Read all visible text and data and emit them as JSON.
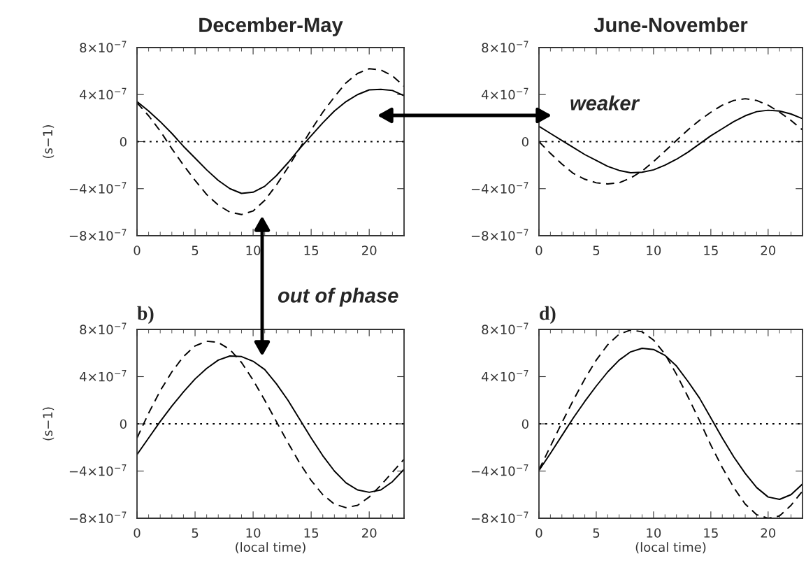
{
  "chart_data": [
    {
      "type": "line",
      "title": "December-May",
      "ylabel": "(s−1)",
      "annotations": [
        "out of phase"
      ],
      "x": [
        0,
        1,
        2,
        3,
        4,
        5,
        6,
        7,
        8,
        9,
        10,
        11,
        12,
        13,
        14,
        15,
        16,
        17,
        18,
        19,
        20,
        21,
        22,
        23
      ],
      "series": [
        {
          "color": "#000000",
          "line_style": "solid",
          "values": [
            3.4e-07,
            2.6e-07,
            1.7e-07,
            7e-08,
            -4e-08,
            -1.4e-07,
            -2.4e-07,
            -3.3e-07,
            -4e-07,
            -4.4e-07,
            -4.3e-07,
            -3.8e-07,
            -2.9e-07,
            -1.8e-07,
            -6e-08,
            5e-08,
            1.6e-07,
            2.6e-07,
            3.4e-07,
            4e-07,
            4.4e-07,
            4.45e-07,
            4.35e-07,
            3.9e-07
          ]
        },
        {
          "color": "#000000",
          "line_style": "dashed",
          "values": [
            3.3e-07,
            2.2e-07,
            9e-08,
            -6e-08,
            -2e-07,
            -3.3e-07,
            -4.5e-07,
            -5.4e-07,
            -6e-07,
            -6.2e-07,
            -5.9e-07,
            -5e-07,
            -3.7e-07,
            -2.2e-07,
            -6e-08,
            1e-07,
            2.5e-07,
            3.8e-07,
            5e-07,
            5.8e-07,
            6.2e-07,
            6.1e-07,
            5.6e-07,
            4.7e-07
          ]
        }
      ],
      "xlim": [
        0,
        23
      ],
      "xticks": [
        0,
        5,
        10,
        15,
        20
      ],
      "ylim": [
        -8e-07,
        8e-07
      ],
      "yticks": [
        {
          "value": 8e-07,
          "label": "8×10$^{−7}$"
        },
        {
          "value": 4e-07,
          "label": "4×10$^{−7}$"
        },
        0,
        {
          "value": -4e-07,
          "label": "−4×10$^{−7}$"
        },
        {
          "value": -8e-07,
          "label": "−8×10$^{−7}$"
        }
      ],
      "ref_lines": [
        {
          "axis": "y",
          "value": 0,
          "color": "#000000",
          "line_style": "dotted"
        }
      ],
      "grid": false,
      "legend": false
    },
    {
      "type": "line",
      "title": "June-November",
      "annotations": [
        "weaker"
      ],
      "x": [
        0,
        1,
        2,
        3,
        4,
        5,
        6,
        7,
        8,
        9,
        10,
        11,
        12,
        13,
        14,
        15,
        16,
        17,
        18,
        19,
        20,
        21,
        22,
        23
      ],
      "series": [
        {
          "color": "#000000",
          "line_style": "solid",
          "values": [
            1.3e-07,
            7e-08,
            1e-08,
            -5e-08,
            -1.1e-07,
            -1.6e-07,
            -2.1e-07,
            -2.45e-07,
            -2.65e-07,
            -2.6e-07,
            -2.4e-07,
            -2e-07,
            -1.5e-07,
            -9e-08,
            -2e-08,
            5e-08,
            1.1e-07,
            1.7e-07,
            2.2e-07,
            2.55e-07,
            2.67e-07,
            2.6e-07,
            2.35e-07,
            1.95e-07
          ]
        },
        {
          "color": "#000000",
          "line_style": "dashed",
          "values": [
            0,
            -1e-07,
            -1.9e-07,
            -2.7e-07,
            -3.2e-07,
            -3.5e-07,
            -3.6e-07,
            -3.5e-07,
            -3.1e-07,
            -2.5e-07,
            -1.7e-07,
            -8e-08,
            1e-08,
            1e-07,
            1.8e-07,
            2.5e-07,
            3.1e-07,
            3.5e-07,
            3.65e-07,
            3.5e-07,
            3.1e-07,
            2.5e-07,
            1.8e-07,
            1e-07
          ]
        }
      ],
      "xlim": [
        0,
        23
      ],
      "xticks": [
        0,
        5,
        10,
        15,
        20
      ],
      "ylim": [
        -8e-07,
        8e-07
      ],
      "yticks": [
        {
          "value": 8e-07,
          "label": "8×10$^{−7}$"
        },
        {
          "value": 4e-07,
          "label": "4×10$^{−7}$"
        },
        0,
        {
          "value": -4e-07,
          "label": "−4×10$^{−7}$"
        },
        {
          "value": -8e-07,
          "label": "−8×10$^{−7}$"
        }
      ],
      "ref_lines": [
        {
          "axis": "y",
          "value": 0,
          "color": "#000000",
          "line_style": "dotted"
        }
      ],
      "grid": false,
      "legend": false
    },
    {
      "type": "line",
      "title": "b)",
      "ylabel": "(s−1)",
      "xlabel": "(local time)",
      "x": [
        0,
        1,
        2,
        3,
        4,
        5,
        6,
        7,
        8,
        9,
        10,
        11,
        12,
        13,
        14,
        15,
        16,
        17,
        18,
        19,
        20,
        21,
        22,
        23
      ],
      "series": [
        {
          "color": "#000000",
          "line_style": "solid",
          "values": [
            -2.6e-07,
            -1.2e-07,
            2e-08,
            1.5e-07,
            2.7e-07,
            3.8e-07,
            4.7e-07,
            5.4e-07,
            5.75e-07,
            5.7e-07,
            5.3e-07,
            4.6e-07,
            3.4e-07,
            2e-07,
            4e-08,
            -1.2e-07,
            -2.7e-07,
            -4e-07,
            -5e-07,
            -5.6e-07,
            -5.8e-07,
            -5.6e-07,
            -4.9e-07,
            -3.85e-07
          ]
        },
        {
          "color": "#000000",
          "line_style": "dashed",
          "values": [
            -1.2e-07,
            9e-08,
            2.8e-07,
            4.4e-07,
            5.7e-07,
            6.6e-07,
            7e-07,
            6.9e-07,
            6.3e-07,
            5.2e-07,
            3.7e-07,
            2e-07,
            2e-08,
            -1.6e-07,
            -3.3e-07,
            -4.8e-07,
            -6e-07,
            -6.8e-07,
            -7.1e-07,
            -6.9e-07,
            -6.2e-07,
            -5.2e-07,
            -4.1e-07,
            -3e-07
          ]
        }
      ],
      "xlim": [
        0,
        23
      ],
      "xticks": [
        0,
        5,
        10,
        15,
        20
      ],
      "ylim": [
        -8e-07,
        8e-07
      ],
      "yticks": [
        {
          "value": 8e-07,
          "label": "8×10$^{−7}$"
        },
        {
          "value": 4e-07,
          "label": "4×10$^{−7}$"
        },
        0,
        {
          "value": -4e-07,
          "label": "−4×10$^{−7}$"
        },
        {
          "value": -8e-07,
          "label": "−8×10$^{−7}$"
        }
      ],
      "ref_lines": [
        {
          "axis": "y",
          "value": 0,
          "color": "#000000",
          "line_style": "dotted"
        }
      ],
      "grid": false,
      "legend": false
    },
    {
      "type": "line",
      "title": "d)",
      "xlabel": "(local time)",
      "x": [
        0,
        1,
        2,
        3,
        4,
        5,
        6,
        7,
        8,
        9,
        10,
        11,
        12,
        13,
        14,
        15,
        16,
        17,
        18,
        19,
        20,
        21,
        22,
        23
      ],
      "series": [
        {
          "color": "#000000",
          "line_style": "solid",
          "values": [
            -3.95e-07,
            -2.5e-07,
            -1e-07,
            5e-08,
            1.9e-07,
            3.2e-07,
            4.4e-07,
            5.4e-07,
            6.1e-07,
            6.4e-07,
            6.3e-07,
            5.8e-07,
            4.9e-07,
            3.6e-07,
            2.2e-07,
            5e-08,
            -1.2e-07,
            -2.8e-07,
            -4.2e-07,
            -5.4e-07,
            -6.2e-07,
            -6.4e-07,
            -6e-07,
            -5.1e-07
          ]
        },
        {
          "color": "#000000",
          "line_style": "dashed",
          "values": [
            -3.9e-07,
            -1.9e-07,
            1e-08,
            2e-07,
            3.8e-07,
            5.4e-07,
            6.7e-07,
            7.6e-07,
            7.95e-07,
            7.8e-07,
            7.1e-07,
            5.9e-07,
            4.2e-07,
            2.3e-07,
            3e-08,
            -1.8e-07,
            -3.7e-07,
            -5.4e-07,
            -6.8e-07,
            -7.7e-07,
            -8e-07,
            -7.8e-07,
            -6.9e-07,
            -5.7e-07
          ]
        }
      ],
      "xlim": [
        0,
        23
      ],
      "xticks": [
        0,
        5,
        10,
        15,
        20
      ],
      "ylim": [
        -8e-07,
        8e-07
      ],
      "yticks": [
        {
          "value": 8e-07,
          "label": "8×10$^{−7}$"
        },
        {
          "value": 4e-07,
          "label": "4×10$^{−7}$"
        },
        0,
        {
          "value": -4e-07,
          "label": "−4×10$^{−7}$"
        },
        {
          "value": -8e-07,
          "label": "−8×10$^{−7}$"
        }
      ],
      "ref_lines": [
        {
          "axis": "y",
          "value": 0,
          "color": "#000000",
          "line_style": "dotted"
        }
      ],
      "grid": false,
      "legend": false
    }
  ]
}
